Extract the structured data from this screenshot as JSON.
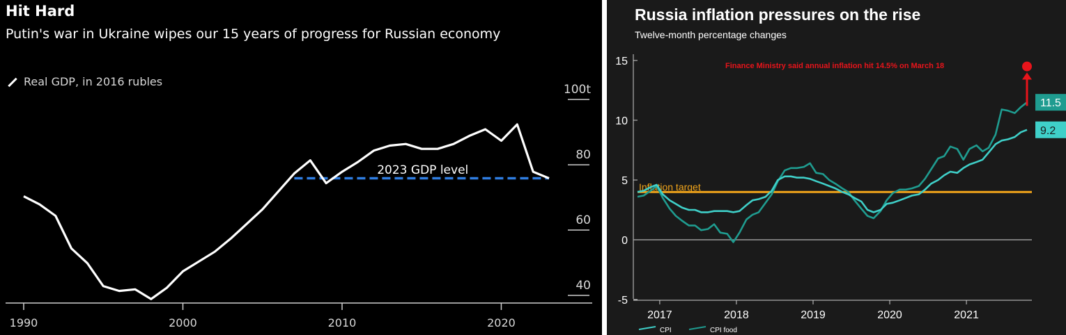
{
  "colors": {
    "left_bg": "#000000",
    "right_bg": "#1a1a1a",
    "gdp_line": "#ffffff",
    "gdp_reference": "#2f7de1",
    "cpi": "#3fd0c9",
    "cpi_food": "#1f9c90",
    "target": "#f2a51a",
    "annotation": "#e8141b"
  },
  "chart_data": [
    {
      "type": "line",
      "title": "Hit Hard",
      "subtitle": "Putin's war in Ukraine wipes our 15 years of progress for Russian economy",
      "xlabel": "",
      "ylabel": "",
      "legend_label": "Real GDP, in 2016 rubles",
      "x_ticks": [
        "1990",
        "2000",
        "2010",
        "2020"
      ],
      "y_ticks": [
        "40",
        "60",
        "80",
        "100t"
      ],
      "xlim": [
        1989,
        2024
      ],
      "ylim": [
        38,
        104
      ],
      "grid": false,
      "series": [
        {
          "name": "Real GDP, in 2016 rubles",
          "x": [
            1990,
            1991,
            1992,
            1993,
            1994,
            1995,
            1996,
            1997,
            1998,
            1999,
            2000,
            2001,
            2002,
            2003,
            2004,
            2005,
            2006,
            2007,
            2008,
            2009,
            2010,
            2011,
            2012,
            2013,
            2014,
            2015,
            2016,
            2017,
            2018,
            2019,
            2020,
            2021,
            2022,
            2023
          ],
          "values": [
            71.0,
            68.5,
            65.0,
            55.0,
            50.5,
            43.5,
            42.0,
            42.5,
            39.5,
            43.0,
            48.0,
            51.0,
            54.0,
            58.0,
            62.5,
            67.0,
            72.5,
            78.0,
            82.0,
            75.0,
            78.5,
            81.5,
            85.0,
            86.5,
            87.0,
            85.5,
            85.5,
            87.0,
            89.5,
            91.5,
            88.0,
            93.0,
            78.5,
            76.5
          ]
        }
      ],
      "reference_line": {
        "label": "2023 GDP level",
        "value": 76.5,
        "x_start": 2007,
        "x_end": 2023
      }
    },
    {
      "type": "line",
      "title": "Russia inflation pressures on the rise",
      "subtitle": "Twelve-month percentage changes",
      "xlabel": "",
      "ylabel": "",
      "x_ticks": [
        "2017",
        "2018",
        "2019",
        "2020",
        "2021"
      ],
      "y_ticks": [
        "15",
        "10",
        "5",
        "0",
        "-5"
      ],
      "xlim": [
        2016.75,
        2021.95
      ],
      "ylim": [
        -5,
        16
      ],
      "grid": false,
      "target": {
        "label": "Inflation target",
        "value": 4
      },
      "annotation": {
        "text": "Finance Ministry said annual inflation hit 14.5% on March 18",
        "value": 14.5
      },
      "end_labels": [
        "11.5",
        "9.2"
      ],
      "series": [
        {
          "name": "CPI",
          "x": [
            2016.75,
            2016.83,
            2016.92,
            2017.0,
            2017.08,
            2017.17,
            2017.25,
            2017.33,
            2017.42,
            2017.5,
            2017.58,
            2017.67,
            2017.75,
            2017.83,
            2017.92,
            2018.0,
            2018.08,
            2018.17,
            2018.25,
            2018.33,
            2018.42,
            2018.5,
            2018.58,
            2018.67,
            2018.75,
            2018.83,
            2018.92,
            2019.0,
            2019.08,
            2019.17,
            2019.25,
            2019.33,
            2019.42,
            2019.5,
            2019.58,
            2019.67,
            2019.75,
            2019.83,
            2019.92,
            2020.0,
            2020.08,
            2020.17,
            2020.25,
            2020.33,
            2020.42,
            2020.5,
            2020.58,
            2020.67,
            2020.75,
            2020.83,
            2020.92,
            2021.0,
            2021.08,
            2021.17,
            2021.25,
            2021.33,
            2021.42,
            2021.5,
            2021.58,
            2021.67,
            2021.75,
            2021.83
          ],
          "values": [
            4.0,
            4.1,
            4.4,
            4.6,
            3.8,
            3.3,
            3.0,
            2.7,
            2.5,
            2.5,
            2.3,
            2.3,
            2.4,
            2.4,
            2.4,
            2.3,
            2.4,
            2.9,
            3.3,
            3.4,
            3.6,
            4.1,
            5.0,
            5.3,
            5.3,
            5.2,
            5.2,
            5.1,
            4.9,
            4.7,
            4.5,
            4.3,
            4.0,
            3.8,
            3.5,
            3.2,
            2.5,
            2.3,
            2.5,
            3.0,
            3.1,
            3.3,
            3.5,
            3.7,
            3.8,
            4.2,
            4.7,
            5.0,
            5.4,
            5.7,
            5.6,
            6.0,
            6.3,
            6.5,
            6.7,
            7.3,
            8.0,
            8.3,
            8.4,
            8.6,
            9.0,
            9.2
          ]
        },
        {
          "name": "CPI food",
          "x": [
            2016.75,
            2016.83,
            2016.92,
            2017.0,
            2017.08,
            2017.17,
            2017.25,
            2017.33,
            2017.42,
            2017.5,
            2017.58,
            2017.67,
            2017.75,
            2017.83,
            2017.92,
            2018.0,
            2018.08,
            2018.17,
            2018.25,
            2018.33,
            2018.42,
            2018.5,
            2018.58,
            2018.67,
            2018.75,
            2018.83,
            2018.92,
            2019.0,
            2019.08,
            2019.17,
            2019.25,
            2019.33,
            2019.42,
            2019.5,
            2019.58,
            2019.67,
            2019.75,
            2019.83,
            2019.92,
            2020.0,
            2020.08,
            2020.17,
            2020.25,
            2020.33,
            2020.42,
            2020.5,
            2020.58,
            2020.67,
            2020.75,
            2020.83,
            2020.92,
            2021.0,
            2021.08,
            2021.17,
            2021.25,
            2021.33,
            2021.42,
            2021.5,
            2021.58,
            2021.67,
            2021.75,
            2021.83
          ],
          "values": [
            3.6,
            3.7,
            4.1,
            4.5,
            3.5,
            2.6,
            2.0,
            1.6,
            1.2,
            1.2,
            0.8,
            0.9,
            1.3,
            0.6,
            0.5,
            -0.2,
            0.6,
            1.7,
            2.1,
            2.3,
            3.1,
            3.8,
            4.9,
            5.8,
            6.0,
            6.0,
            6.1,
            6.4,
            5.6,
            5.5,
            5.0,
            4.7,
            4.3,
            4.0,
            3.3,
            2.6,
            2.0,
            1.8,
            2.4,
            3.3,
            3.9,
            4.2,
            4.2,
            4.3,
            4.5,
            5.1,
            5.9,
            6.8,
            7.0,
            7.8,
            7.6,
            6.7,
            7.6,
            7.9,
            7.4,
            7.7,
            8.8,
            10.9,
            10.8,
            10.6,
            11.1,
            11.5
          ]
        }
      ]
    }
  ]
}
